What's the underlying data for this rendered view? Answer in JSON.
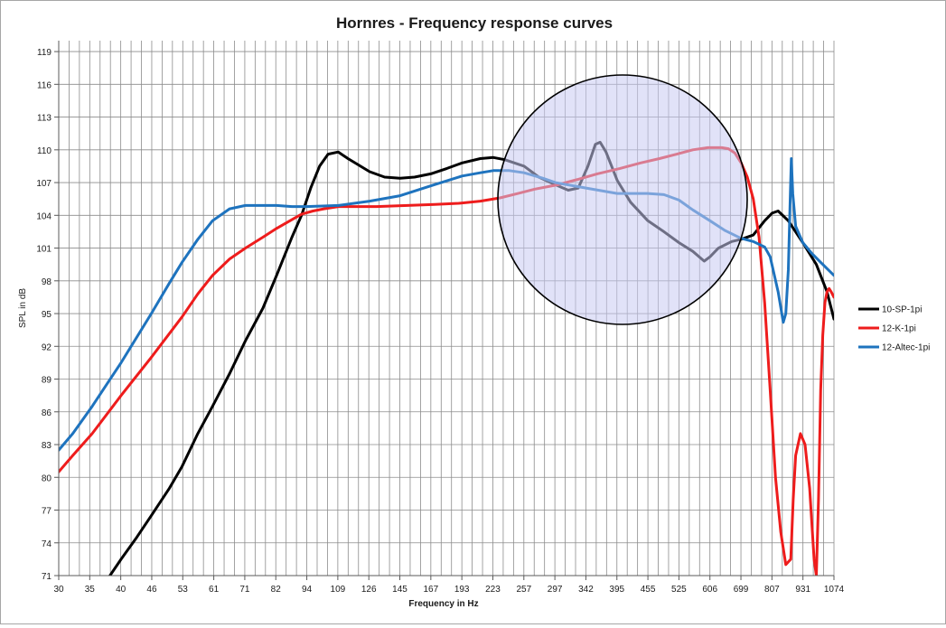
{
  "chart_data": {
    "type": "line",
    "title": "Hornres - Frequency response curves",
    "xlabel": "Frequency in Hz",
    "ylabel": "SPL in dB",
    "x_tick_labels": [
      "30",
      "35",
      "40",
      "46",
      "53",
      "61",
      "71",
      "82",
      "94",
      "109",
      "126",
      "145",
      "167",
      "193",
      "223",
      "257",
      "297",
      "342",
      "395",
      "455",
      "525",
      "606",
      "699",
      "807",
      "931",
      "1074"
    ],
    "x_scale": "log",
    "xlim": [
      30,
      1074
    ],
    "ylim": [
      71,
      120
    ],
    "y_ticks": [
      71,
      74,
      77,
      80,
      83,
      86,
      89,
      92,
      95,
      98,
      101,
      104,
      107,
      110,
      113,
      116,
      119
    ],
    "grid": "on",
    "legend_position": "right",
    "annotation": "circle highlighting region ~250-800 Hz",
    "colors": {
      "10-SP-1pi": "#000000",
      "12-K-1pi": "#ee1c1c",
      "12-Altec-1pi": "#1e73be",
      "highlight_fill": "#c9cbf2"
    },
    "series": [
      {
        "name": "10-SP-1pi",
        "points": [
          [
            38,
            71
          ],
          [
            40,
            72.5
          ],
          [
            43,
            74.5
          ],
          [
            46,
            76.5
          ],
          [
            50,
            79
          ],
          [
            53,
            81
          ],
          [
            57,
            84
          ],
          [
            61,
            86.5
          ],
          [
            66,
            89.5
          ],
          [
            71,
            92.5
          ],
          [
            77,
            95.5
          ],
          [
            82,
            98.5
          ],
          [
            88,
            102
          ],
          [
            92,
            104
          ],
          [
            96,
            106.5
          ],
          [
            100,
            108.5
          ],
          [
            104,
            109.6
          ],
          [
            109,
            109.8
          ],
          [
            114,
            109.2
          ],
          [
            126,
            108
          ],
          [
            135,
            107.5
          ],
          [
            145,
            107.4
          ],
          [
            155,
            107.5
          ],
          [
            167,
            107.8
          ],
          [
            180,
            108.3
          ],
          [
            193,
            108.8
          ],
          [
            210,
            109.2
          ],
          [
            223,
            109.3
          ],
          [
            235,
            109.1
          ],
          [
            257,
            108.5
          ],
          [
            275,
            107.5
          ],
          [
            297,
            106.8
          ],
          [
            315,
            106.3
          ],
          [
            330,
            106.5
          ],
          [
            345,
            108.5
          ],
          [
            357,
            110.5
          ],
          [
            365,
            110.7
          ],
          [
            375,
            109.8
          ],
          [
            395,
            107.2
          ],
          [
            420,
            105.2
          ],
          [
            455,
            103.5
          ],
          [
            490,
            102.5
          ],
          [
            525,
            101.5
          ],
          [
            560,
            100.7
          ],
          [
            590,
            99.8
          ],
          [
            606,
            100.2
          ],
          [
            630,
            101
          ],
          [
            670,
            101.6
          ],
          [
            699,
            101.8
          ],
          [
            740,
            102.2
          ],
          [
            780,
            103.5
          ],
          [
            807,
            104.2
          ],
          [
            830,
            104.4
          ],
          [
            870,
            103.5
          ],
          [
            930,
            101.5
          ],
          [
            990,
            99.5
          ],
          [
            1040,
            97
          ],
          [
            1074,
            94.5
          ]
        ]
      },
      {
        "name": "12-K-1pi",
        "points": [
          [
            30,
            80.5
          ],
          [
            32,
            82
          ],
          [
            35,
            84
          ],
          [
            40,
            87.5
          ],
          [
            46,
            91
          ],
          [
            53,
            94.7
          ],
          [
            57,
            96.8
          ],
          [
            61,
            98.5
          ],
          [
            66,
            100
          ],
          [
            71,
            101
          ],
          [
            77,
            102
          ],
          [
            82,
            102.8
          ],
          [
            88,
            103.6
          ],
          [
            92,
            104.1
          ],
          [
            97,
            104.4
          ],
          [
            102,
            104.6
          ],
          [
            109,
            104.8
          ],
          [
            120,
            104.8
          ],
          [
            130,
            104.8
          ],
          [
            150,
            104.9
          ],
          [
            170,
            105
          ],
          [
            190,
            105.1
          ],
          [
            210,
            105.3
          ],
          [
            230,
            105.6
          ],
          [
            250,
            106
          ],
          [
            270,
            106.4
          ],
          [
            300,
            106.8
          ],
          [
            330,
            107.3
          ],
          [
            360,
            107.8
          ],
          [
            400,
            108.3
          ],
          [
            440,
            108.8
          ],
          [
            480,
            109.2
          ],
          [
            520,
            109.6
          ],
          [
            560,
            110
          ],
          [
            600,
            110.2
          ],
          [
            640,
            110.2
          ],
          [
            660,
            110.1
          ],
          [
            680,
            109.7
          ],
          [
            700,
            108.8
          ],
          [
            720,
            107.5
          ],
          [
            740,
            105.5
          ],
          [
            760,
            102
          ],
          [
            780,
            96
          ],
          [
            800,
            88
          ],
          [
            820,
            80
          ],
          [
            840,
            75
          ],
          [
            860,
            72
          ],
          [
            880,
            72.5
          ],
          [
            890,
            78
          ],
          [
            900,
            82
          ],
          [
            920,
            84
          ],
          [
            940,
            83
          ],
          [
            960,
            79
          ],
          [
            980,
            72.5
          ],
          [
            990,
            71
          ],
          [
            1000,
            78
          ],
          [
            1010,
            88
          ],
          [
            1020,
            93
          ],
          [
            1030,
            96
          ],
          [
            1040,
            97
          ],
          [
            1050,
            97.3
          ],
          [
            1060,
            97
          ],
          [
            1074,
            96.5
          ]
        ]
      },
      {
        "name": "12-Altec-1pi",
        "points": [
          [
            30,
            82.5
          ],
          [
            32,
            84
          ],
          [
            35,
            86.5
          ],
          [
            40,
            90.5
          ],
          [
            46,
            95
          ],
          [
            50,
            97.8
          ],
          [
            53,
            99.7
          ],
          [
            57,
            101.8
          ],
          [
            61,
            103.5
          ],
          [
            66,
            104.6
          ],
          [
            71,
            104.9
          ],
          [
            77,
            104.9
          ],
          [
            82,
            104.9
          ],
          [
            88,
            104.8
          ],
          [
            94,
            104.8
          ],
          [
            109,
            104.9
          ],
          [
            126,
            105.3
          ],
          [
            145,
            105.8
          ],
          [
            167,
            106.7
          ],
          [
            193,
            107.6
          ],
          [
            210,
            107.9
          ],
          [
            223,
            108.1
          ],
          [
            240,
            108.1
          ],
          [
            257,
            107.9
          ],
          [
            280,
            107.4
          ],
          [
            297,
            107
          ],
          [
            342,
            106.5
          ],
          [
            395,
            106
          ],
          [
            455,
            106
          ],
          [
            490,
            105.9
          ],
          [
            525,
            105.4
          ],
          [
            560,
            104.5
          ],
          [
            606,
            103.5
          ],
          [
            650,
            102.6
          ],
          [
            699,
            101.9
          ],
          [
            740,
            101.6
          ],
          [
            780,
            101.1
          ],
          [
            800,
            100.2
          ],
          [
            830,
            97
          ],
          [
            850,
            94.2
          ],
          [
            860,
            95
          ],
          [
            870,
            99
          ],
          [
            877,
            105
          ],
          [
            882,
            109.2
          ],
          [
            888,
            106
          ],
          [
            900,
            103
          ],
          [
            930,
            101.5
          ],
          [
            970,
            100.5
          ],
          [
            1010,
            99.7
          ],
          [
            1074,
            98.5
          ]
        ]
      }
    ]
  }
}
